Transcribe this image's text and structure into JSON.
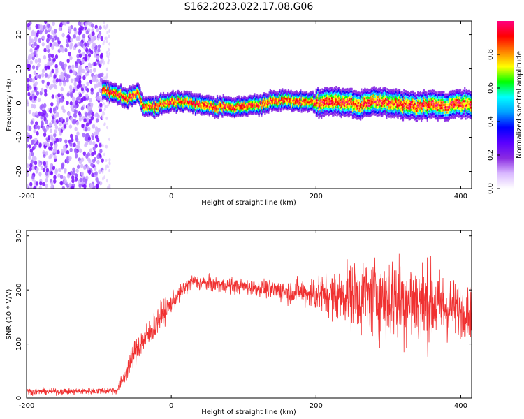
{
  "figure_title": "S162.2023.022.17.08.G06",
  "chart_data": [
    {
      "type": "heatmap",
      "title": "",
      "xlabel": "Height of straight line (km)",
      "ylabel": "Frequency (Hz)",
      "xlim": [
        -200,
        415
      ],
      "ylim": [
        -25,
        24
      ],
      "xticks": [
        -200,
        0,
        200,
        400
      ],
      "yticks": [
        -20,
        -10,
        0,
        10,
        20
      ],
      "grid": false,
      "colorbar": {
        "label": "Normalized spectral amplitude",
        "range": [
          0,
          1
        ],
        "ticks": [
          "0.0",
          "0.2",
          "0.4",
          "0.6",
          "0.8"
        ],
        "tick_values": [
          0,
          0.2,
          0.4,
          0.6,
          0.8
        ],
        "colors": [
          "#ffffff",
          "#d9b8ff",
          "#8a2be2",
          "#5a00ff",
          "#0000ff",
          "#00a0ff",
          "#00ffff",
          "#00ff00",
          "#ffff00",
          "#ff8000",
          "#ff0000",
          "#ff0080"
        ]
      },
      "noise_region_x": [
        -200,
        -95
      ],
      "ridge": {
        "x": [
          -95,
          -75,
          -60,
          -45,
          -40,
          -20,
          0,
          20,
          40,
          60,
          80,
          100,
          120,
          140,
          160,
          180,
          200,
          220,
          240,
          260,
          280,
          300,
          320,
          340,
          360,
          380,
          400,
          415
        ],
        "freq_hz": [
          4.0,
          2.5,
          1.5,
          3.0,
          -1.0,
          -1.0,
          0.5,
          0.5,
          -0.5,
          -1.0,
          -1.0,
          -1.0,
          -0.5,
          0.5,
          1.0,
          0.5,
          0.0,
          0.5,
          0.0,
          -0.5,
          0.5,
          0.0,
          -0.5,
          -1.0,
          -0.5,
          -1.0,
          0.0,
          -0.5
        ]
      }
    },
    {
      "type": "line",
      "title": "",
      "xlabel": "Height of straight line (km)",
      "ylabel": "SNR (10 * V/V)",
      "xlim": [
        -200,
        415
      ],
      "ylim": [
        0,
        310
      ],
      "xticks": [
        -200,
        0,
        200,
        400
      ],
      "yticks": [
        0,
        100,
        200,
        300
      ],
      "grid": false,
      "series": [
        {
          "color": "#f03030",
          "x": [
            -200,
            -150,
            -100,
            -75,
            -70,
            -60,
            -50,
            -40,
            -30,
            -20,
            -10,
            0,
            10,
            20,
            25,
            30,
            40,
            50,
            60,
            80,
            100,
            120,
            140,
            160,
            180,
            200,
            220,
            240,
            260,
            280,
            300,
            320,
            340,
            360,
            380,
            400,
            415
          ],
          "y": [
            12,
            12,
            13,
            14,
            25,
            55,
            85,
            105,
            120,
            140,
            160,
            175,
            190,
            205,
            212,
            215,
            213,
            212,
            210,
            208,
            206,
            204,
            200,
            198,
            196,
            194,
            192,
            190,
            188,
            186,
            184,
            182,
            178,
            172,
            168,
            162,
            160
          ],
          "spread": [
            5,
            5,
            5,
            6,
            10,
            15,
            20,
            22,
            22,
            22,
            20,
            15,
            12,
            12,
            12,
            12,
            12,
            12,
            12,
            12,
            12,
            12,
            15,
            18,
            20,
            28,
            35,
            45,
            55,
            60,
            65,
            68,
            68,
            62,
            50,
            40,
            35
          ]
        }
      ]
    }
  ]
}
